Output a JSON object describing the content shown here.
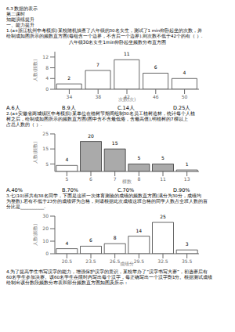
{
  "chart_data": [
    {
      "type": "bar",
      "annotations": [
        "6.3 数据的表示",
        "第二课时",
        "知能演练提升",
        "一、能力提升",
        "1.(a+浙江杭州中考模拟)某校随机抽查了八年级的30名女生，测试了1 min仰卧起坐的次数，并",
        "绘制成如图所示的频数直方图(每组含一个边界，不含后一个边界).则次数不低于42个的有（  ）."
      ],
      "title": "八年级30名女生1min仰卧起坐频数分布直方图",
      "categories": [
        "34",
        "38",
        "42",
        "46",
        "50"
      ],
      "values": [
        2,
        7,
        11,
        6,
        4
      ],
      "color": "#ffffff",
      "xlabel": "次数(次)",
      "ylabel": "人数(频数)",
      "ylim": [
        0,
        14
      ],
      "yticks": [
        0,
        2,
        4,
        6,
        8,
        10,
        12
      ],
      "data_labels": true
    },
    {
      "type": "bar",
      "annotations": [
        [
          "A.6人",
          "B.9人",
          "C.14人",
          "D.25人"
        ],
        "2.(a+安徽省两城镇区中考模拟)某单位在植树节期间组制30名员工植树造林，统计每个人植",
        "树之后，绘制成如图所示的频数直方图(图中含不含最低倦，含最高值),明植树的7棵以上",
        "占总人数的（  ）."
      ],
      "categories": [
        "5",
        "6",
        "7",
        "8",
        "11",
        "13"
      ],
      "values": [
        4,
        20,
        15,
        5,
        5,
        1
      ],
      "colors": [
        "#ffffff",
        "#aaaaaa",
        "#aaaaaa",
        "#aaaaaa",
        "#aaaaaa",
        "#ffffff"
      ],
      "xlabel": "棵数",
      "ylabel": "人数(频数)",
      "ylim": [
        0,
        25
      ],
      "yticks": [
        0,
        5,
        10,
        15,
        20,
        25
      ],
      "data_labels": true
    },
    {
      "type": "bar",
      "annotations": [
        [
          "A.40%",
          "B.70%",
          "C.70%",
          "D.90%"
        ],
        "3.七(10)班共有38名同学，下面是这班一次体育测验的成绩的频数直方图(满分为30分，成绩均",
        "为整数).若有不低于23分的成绩评为合格，则请根据此次成绩这班合格的同学人数占全班人数的百",
        "分比是___________."
      ],
      "subtitle": [
        "4.为了提高学生书写汉字的能力，增强保护汉字的意识，某校举办了“汉字书写大赛”，初选赛后有",
        "60名学生参加决赛。该60名学生在限时内写出每个汉字，每正确写出一个汉字劗1分。根据测试成绩",
        "绘制出该分数段频数分布表和部分频数直方图如图及所示："
      ],
      "categories": [
        "20.5",
        "23.5",
        "26.5",
        "29.5",
        "32.5",
        "35.5"
      ],
      "values": [
        4,
        6,
        8,
        14,
        25,
        3
      ],
      "color": "#ffffff",
      "xlabel": "成绩分",
      "ylabel": "人数(频数)",
      "ylim": [
        0,
        30
      ],
      "yticks": [
        0,
        5,
        10,
        15,
        20,
        25,
        30
      ],
      "data_labels": true
    }
  ]
}
